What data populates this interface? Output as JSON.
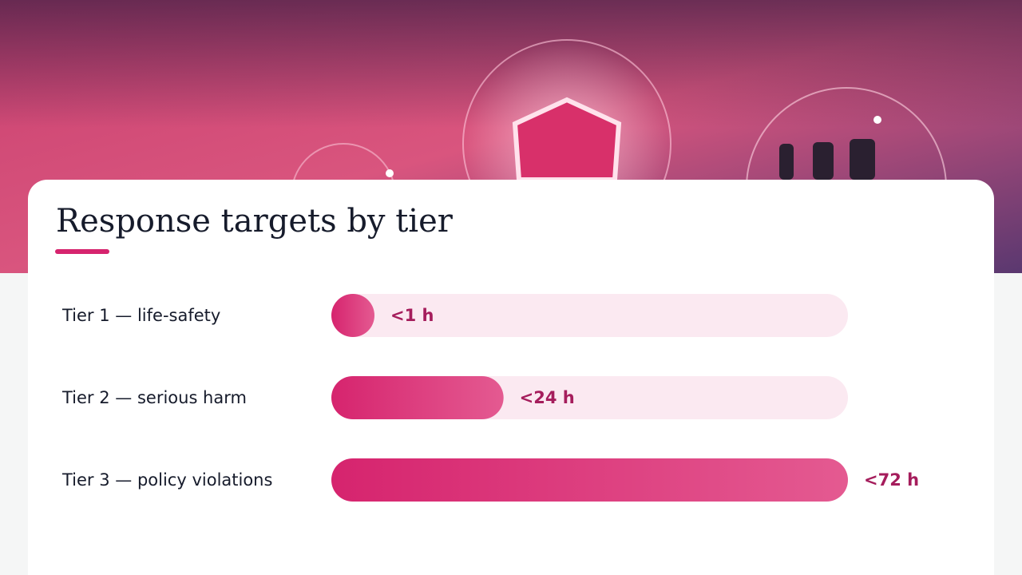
{
  "chart_data": {
    "type": "hbar",
    "title": "Response targets by tier",
    "categories": [
      "Tier 1 — life-safety",
      "Tier 2 — serious harm",
      "Tier 3 — policy violations"
    ],
    "values": [
      1,
      24,
      72
    ],
    "value_labels": [
      "<1 h",
      "<24 h",
      "<72 h"
    ],
    "xlim": [
      0,
      72
    ],
    "color": "#d6246e"
  }
}
